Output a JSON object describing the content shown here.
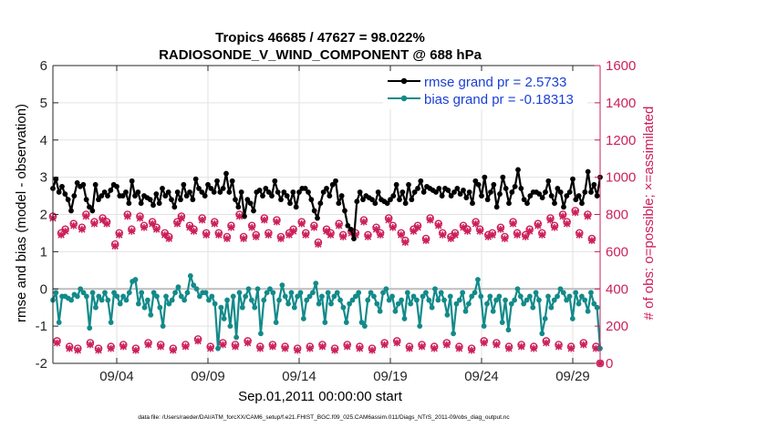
{
  "chart_data": {
    "type": "line",
    "title": "Tropics 46685 / 47627 = 98.022%",
    "subtitle": "RADIOSONDE_V_WIND_COMPONENT @ 688 hPa",
    "xlabel": "Sep.01,2011 00:00:00 start",
    "ylabel_left": "rmse and bias (model - observation)",
    "ylabel_right": "# of obs: o=possible; ×=assimilated",
    "footer": "data file: /Users/raeder/DAI/ATM_forcXX/CAM6_setup/f.e21.FHIST_BGC.f09_025.CAM6assim.011/Diags_NTrS_2011-09/obs_diag_output.nc",
    "x_range": [
      1,
      31
    ],
    "ylim_left": [
      -2,
      6
    ],
    "ylim_right": [
      0,
      1600
    ],
    "x_ticks": [
      {
        "value": 4.5,
        "label": "09/04"
      },
      {
        "value": 9.5,
        "label": "09/09"
      },
      {
        "value": 14.5,
        "label": "09/14"
      },
      {
        "value": 19.5,
        "label": "09/19"
      },
      {
        "value": 24.5,
        "label": "09/24"
      },
      {
        "value": 29.5,
        "label": "09/29"
      }
    ],
    "y_ticks_left": [
      -2,
      -1,
      0,
      1,
      2,
      3,
      4,
      5,
      6
    ],
    "y_ticks_right": [
      0,
      200,
      400,
      600,
      800,
      1000,
      1200,
      1400,
      1600
    ],
    "zero_line": 0,
    "colors": {
      "rmse": "#000000",
      "bias": "#138a8a",
      "obs": "#cc1f5b",
      "zero_line": "#bdbdbd",
      "legend_text": "#1a3fd6"
    },
    "series": [
      {
        "name": "rmse grand pr = 2.5733",
        "axis": "left",
        "values": [
          2.7,
          2.95,
          2.6,
          2.75,
          2.55,
          2.4,
          2.1,
          2.5,
          2.85,
          2.75,
          2.8,
          2.4,
          2.2,
          2.1,
          2.8,
          2.4,
          2.5,
          2.6,
          2.5,
          2.65,
          2.8,
          2.75,
          2.5,
          2.5,
          2.6,
          2.3,
          2.9,
          2.5,
          2.6,
          2.3,
          2.5,
          2.45,
          2.4,
          2.25,
          2.55,
          2.3,
          2.7,
          2.5,
          2.6,
          2.4,
          2.2,
          2.6,
          2.4,
          2.8,
          2.5,
          2.6,
          2.4,
          2.95,
          2.7,
          2.6,
          2.5,
          2.8,
          2.7,
          2.6,
          2.9,
          2.6,
          2.7,
          3.1,
          2.6,
          2.9,
          2.4,
          2.2,
          2.6,
          1.95,
          2.4,
          2.3,
          2.1,
          2.6,
          2.65,
          2.5,
          2.7,
          2.6,
          2.5,
          2.9,
          2.6,
          2.4,
          2.6,
          2.5,
          2.3,
          2.6,
          2.2,
          2.6,
          2.7,
          2.7,
          2.6,
          2.4,
          2.1,
          1.9,
          2.3,
          2.6,
          2.7,
          2.5,
          2.8,
          2.9,
          2.3,
          2.5,
          2.1,
          1.7,
          1.6,
          1.35,
          2.35,
          2.6,
          2.4,
          2.5,
          2.45,
          2.4,
          2.3,
          2.6,
          2.4,
          2.35,
          2.3,
          2.4,
          2.5,
          2.8,
          2.4,
          2.6,
          2.3,
          2.8,
          2.4,
          2.6,
          2.7,
          2.9,
          2.6,
          2.75,
          2.7,
          2.65,
          2.6,
          2.7,
          2.5,
          2.7,
          2.65,
          2.5,
          2.6,
          2.7,
          2.55,
          2.65,
          2.45,
          2.6,
          2.3,
          2.9,
          2.8,
          2.5,
          3.0,
          2.4,
          2.6,
          2.8,
          2.2,
          2.55,
          3.0,
          2.7,
          2.3,
          2.6,
          2.75,
          3.2,
          2.7,
          2.4,
          2.3,
          2.5,
          2.6,
          2.6,
          2.55,
          2.45,
          2.6,
          2.9,
          2.5,
          2.3,
          2.7,
          2.6,
          2.2,
          2.5,
          2.6,
          2.95,
          2.4,
          2.5,
          2.3,
          2.6,
          3.15,
          2.6,
          2.8,
          2.5,
          3.0
        ]
      },
      {
        "name": "bias grand pr = -0.18313",
        "axis": "left",
        "values": [
          -0.3,
          -0.1,
          -0.9,
          -0.2,
          -0.2,
          -0.25,
          -0.3,
          -0.15,
          -0.2,
          0.0,
          -0.1,
          -0.2,
          -1.05,
          -0.1,
          -0.5,
          -0.2,
          -0.3,
          -0.1,
          -0.3,
          -0.9,
          -0.1,
          -0.2,
          -0.4,
          -0.2,
          -0.3,
          -0.1,
          0.2,
          0.25,
          -0.4,
          -0.1,
          -0.5,
          -0.3,
          -0.7,
          -0.1,
          -0.2,
          -0.5,
          -1.0,
          -0.2,
          -0.4,
          -0.3,
          -0.1,
          0.05,
          -0.2,
          -0.3,
          -0.1,
          0.35,
          0.1,
          0.0,
          -0.2,
          -0.1,
          -0.1,
          -0.3,
          -0.2,
          -0.4,
          -1.6,
          -0.5,
          -0.8,
          -0.3,
          -1.0,
          -0.2,
          -1.3,
          -0.1,
          -0.5,
          -0.2,
          0.0,
          -0.3,
          -0.5,
          0.0,
          -1.2,
          -0.3,
          -0.1,
          0.0,
          -0.1,
          -0.9,
          -0.3,
          0.1,
          -0.2,
          -0.4,
          -0.1,
          -0.5,
          -0.2,
          -0.1,
          -0.8,
          -0.3,
          -0.2,
          -0.1,
          0.15,
          -0.4,
          -0.2,
          -0.9,
          -0.1,
          -0.4,
          -0.2,
          -0.1,
          -0.3,
          -0.5,
          -0.9,
          -0.4,
          -0.3,
          -0.2,
          -0.1,
          -0.9,
          -1.0,
          -0.3,
          -0.1,
          -0.2,
          -0.4,
          -0.6,
          -0.1,
          0.0,
          -0.3,
          -0.2,
          -0.6,
          -0.4,
          -0.3,
          -0.8,
          -0.1,
          -0.4,
          -0.2,
          -0.3,
          -1.0,
          -0.2,
          -0.1,
          -0.3,
          -0.5,
          0.0,
          -0.3,
          -0.1,
          -0.3,
          -0.7,
          -0.2,
          -1.2,
          -0.4,
          -0.3,
          -0.1,
          -0.6,
          -0.4,
          -0.2,
          -0.1,
          0.25,
          -0.2,
          -1.0,
          -0.4,
          -0.2,
          -0.6,
          -0.3,
          -0.2,
          -0.9,
          -0.3,
          -1.1,
          -0.4,
          -0.3,
          0.0,
          -0.2,
          -0.4,
          -0.3,
          -0.2,
          -0.5,
          -0.1,
          -0.3,
          -1.2,
          -0.8,
          -0.2,
          -0.5,
          -0.3,
          -0.2,
          0.0,
          -0.1,
          -0.3,
          -0.2,
          -0.8,
          -0.1,
          -0.4,
          -0.2,
          -0.3,
          -0.6,
          -0.1,
          -0.4,
          -0.5,
          -1.6
        ]
      },
      {
        "name": "obs possible (o)",
        "axis": "right",
        "values": [
          790,
          120,
          700,
          720,
          90,
          750,
          80,
          730,
          800,
          110,
          760,
          80,
          780,
          760,
          90,
          640,
          700,
          100,
          800,
          720,
          80,
          790,
          740,
          110,
          760,
          730,
          100,
          700,
          680,
          80,
          760,
          790,
          100,
          740,
          720,
          130,
          780,
          700,
          90,
          760,
          700,
          110,
          680,
          740,
          100,
          800,
          680,
          120,
          740,
          690,
          90,
          780,
          700,
          100,
          770,
          680,
          90,
          700,
          720,
          80,
          760,
          700,
          90,
          740,
          650,
          100,
          720,
          700,
          80,
          750,
          690,
          100,
          710,
          700,
          90,
          770,
          690,
          80,
          730,
          700,
          110,
          780,
          740,
          120,
          700,
          660,
          90,
          720,
          740,
          100,
          670,
          780,
          90,
          750,
          700,
          110,
          680,
          700,
          90,
          740,
          720,
          80,
          760,
          720,
          120,
          690,
          700,
          110,
          730,
          680,
          90,
          760,
          700,
          100,
          690,
          720,
          90,
          750,
          700,
          120,
          780,
          740,
          100,
          800,
          760,
          90,
          820,
          700,
          110,
          800,
          670,
          90,
          0
        ]
      },
      {
        "name": "obs assimilated (×)",
        "axis": "right",
        "values": [
          780,
          110,
          690,
          710,
          80,
          740,
          70,
          720,
          790,
          100,
          750,
          70,
          770,
          750,
          80,
          630,
          690,
          90,
          790,
          710,
          70,
          780,
          730,
          100,
          750,
          720,
          90,
          690,
          670,
          70,
          750,
          780,
          90,
          730,
          710,
          120,
          770,
          690,
          80,
          750,
          690,
          100,
          670,
          730,
          90,
          790,
          670,
          110,
          730,
          680,
          80,
          770,
          690,
          90,
          760,
          670,
          80,
          690,
          710,
          70,
          750,
          690,
          80,
          730,
          640,
          90,
          710,
          690,
          70,
          740,
          680,
          90,
          700,
          690,
          80,
          760,
          680,
          70,
          720,
          690,
          100,
          770,
          730,
          110,
          690,
          650,
          80,
          710,
          730,
          90,
          660,
          770,
          80,
          740,
          690,
          100,
          670,
          690,
          80,
          730,
          710,
          70,
          750,
          710,
          110,
          680,
          690,
          100,
          720,
          670,
          80,
          750,
          690,
          90,
          680,
          710,
          80,
          740,
          690,
          110,
          770,
          730,
          90,
          790,
          750,
          80,
          810,
          690,
          100,
          790,
          660,
          80,
          0
        ]
      }
    ]
  }
}
